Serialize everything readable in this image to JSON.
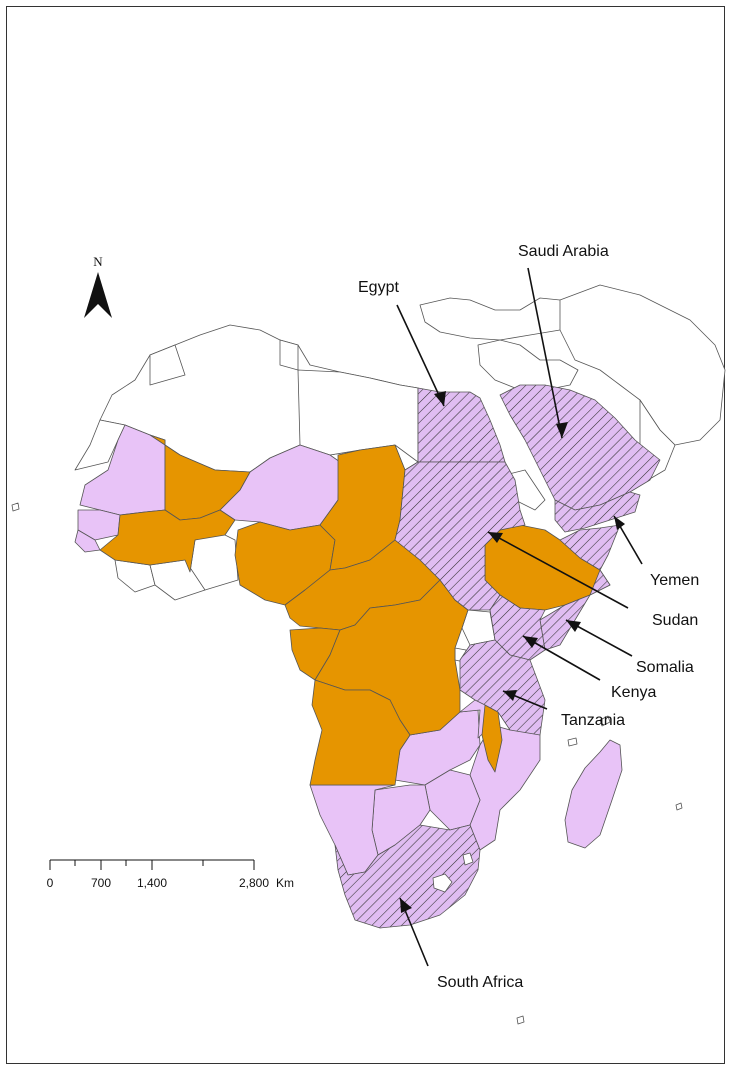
{
  "map": {
    "colors": {
      "orange": "#E69500",
      "lavender": "#E8C3F7",
      "hatched_fill": "#E0BDF2",
      "hatch_line": "#333333",
      "white": "#FFFFFF",
      "border": "#555555"
    },
    "north_arrow": {
      "letter": "N"
    },
    "scale_bar": {
      "labels": [
        "0",
        "700",
        "1,400",
        "2,800"
      ],
      "unit": "Km"
    },
    "labels": {
      "saudi_arabia": "Saudi Arabia",
      "egypt": "Egypt",
      "yemen": "Yemen",
      "sudan": "Sudan",
      "somalia": "Somalia",
      "kenya": "Kenya",
      "tanzania": "Tanzania",
      "south_africa": "South Africa"
    }
  }
}
